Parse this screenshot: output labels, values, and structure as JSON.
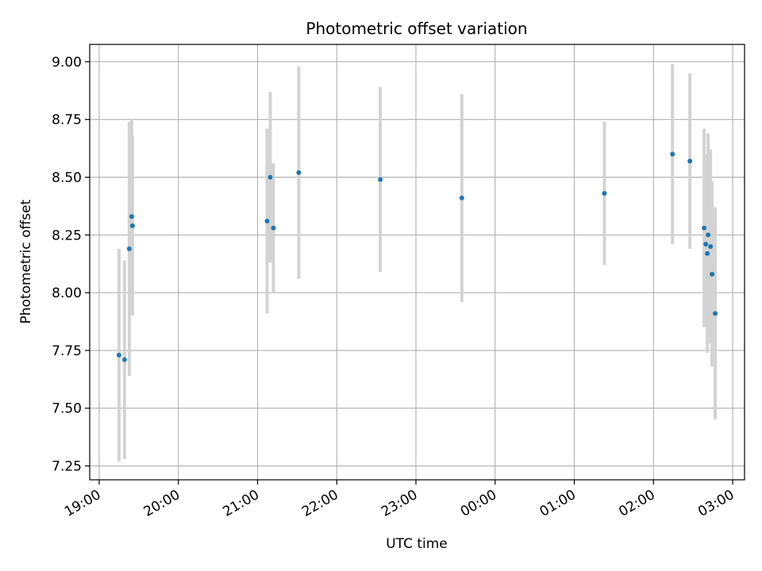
{
  "chart_data": {
    "type": "scatter",
    "title": "Photometric offset variation",
    "xlabel": "UTC time",
    "ylabel": "Photometric offset",
    "x_start_time": "19:00",
    "xlim_hours": [
      -0.12,
      8.15
    ],
    "ylim": [
      7.19,
      9.075
    ],
    "grid": true,
    "x_ticks": [
      {
        "hour": 0,
        "label": "19:00"
      },
      {
        "hour": 1,
        "label": "20:00"
      },
      {
        "hour": 2,
        "label": "21:00"
      },
      {
        "hour": 3,
        "label": "22:00"
      },
      {
        "hour": 4,
        "label": "23:00"
      },
      {
        "hour": 5,
        "label": "00:00"
      },
      {
        "hour": 6,
        "label": "01:00"
      },
      {
        "hour": 7,
        "label": "02:00"
      },
      {
        "hour": 8,
        "label": "03:00"
      }
    ],
    "y_ticks": [
      {
        "value": 7.25,
        "label": "7.25"
      },
      {
        "value": 7.5,
        "label": "7.50"
      },
      {
        "value": 7.75,
        "label": "7.75"
      },
      {
        "value": 8.0,
        "label": "8.00"
      },
      {
        "value": 8.25,
        "label": "8.25"
      },
      {
        "value": 8.5,
        "label": "8.50"
      },
      {
        "value": 8.75,
        "label": "8.75"
      },
      {
        "value": 9.0,
        "label": "9.00"
      }
    ],
    "marker_color": "#1f77b4",
    "errorbar_color": "#d3d3d3",
    "points": [
      {
        "t": 0.25,
        "y": 7.73,
        "err": 0.46
      },
      {
        "t": 0.32,
        "y": 7.71,
        "err": 0.43
      },
      {
        "t": 0.38,
        "y": 8.19,
        "err": 0.55
      },
      {
        "t": 0.41,
        "y": 8.33,
        "err": 0.42
      },
      {
        "t": 0.42,
        "y": 8.29,
        "err": 0.39
      },
      {
        "t": 2.12,
        "y": 8.31,
        "err": 0.4
      },
      {
        "t": 2.16,
        "y": 8.5,
        "err": 0.37
      },
      {
        "t": 2.2,
        "y": 8.28,
        "err": 0.28
      },
      {
        "t": 2.52,
        "y": 8.52,
        "err": 0.46
      },
      {
        "t": 3.55,
        "y": 8.49,
        "err": 0.4
      },
      {
        "t": 4.58,
        "y": 8.41,
        "err": 0.45
      },
      {
        "t": 6.38,
        "y": 8.43,
        "err": 0.31
      },
      {
        "t": 7.24,
        "y": 8.6,
        "err": 0.39
      },
      {
        "t": 7.46,
        "y": 8.57,
        "err": 0.38
      },
      {
        "t": 7.64,
        "y": 8.28,
        "err": 0.43
      },
      {
        "t": 7.66,
        "y": 8.21,
        "err": 0.35
      },
      {
        "t": 7.68,
        "y": 8.17,
        "err": 0.43
      },
      {
        "t": 7.69,
        "y": 8.25,
        "err": 0.44
      },
      {
        "t": 7.72,
        "y": 8.2,
        "err": 0.42
      },
      {
        "t": 7.74,
        "y": 8.08,
        "err": 0.4
      },
      {
        "t": 7.78,
        "y": 7.91,
        "err": 0.46
      }
    ]
  }
}
